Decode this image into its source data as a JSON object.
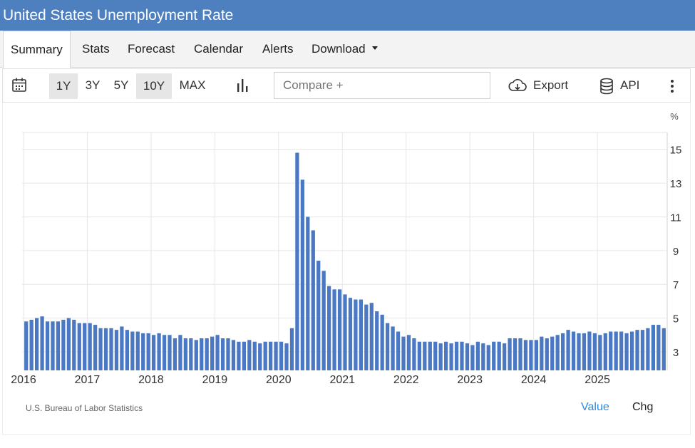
{
  "header": {
    "title": "United States Unemployment Rate"
  },
  "tabs": [
    {
      "label": "Summary",
      "active": true
    },
    {
      "label": "Stats"
    },
    {
      "label": "Forecast"
    },
    {
      "label": "Calendar"
    },
    {
      "label": "Alerts"
    },
    {
      "label": "Download"
    }
  ],
  "toolbar": {
    "ranges": [
      "1Y",
      "3Y",
      "5Y",
      "10Y",
      "MAX"
    ],
    "selected_ranges": [
      "1Y",
      "10Y"
    ],
    "compare_placeholder": "Compare +",
    "export_label": "Export",
    "api_label": "API",
    "icons": [
      "calendar-icon",
      "bar-chart-icon",
      "cloud-download-icon",
      "database-icon",
      "more-vertical-icon"
    ]
  },
  "footer": {
    "source": "U.S. Bureau of Labor Statistics",
    "value_label": "Value",
    "chg_label": "Chg"
  },
  "colors": {
    "title_bar": "#4e7fbf",
    "bar": "#4a78c2",
    "link": "#2a8ae6"
  },
  "chart_data": {
    "type": "bar",
    "unit": "%",
    "y_ticks": [
      3,
      5,
      7,
      9,
      11,
      13,
      15
    ],
    "ylim": [
      1.9,
      16
    ],
    "x_ticks": [
      "2016",
      "2017",
      "2018",
      "2019",
      "2020",
      "2021",
      "2022",
      "2023",
      "2024",
      "2025"
    ],
    "start": "2016-01",
    "grid": true,
    "series": [
      {
        "values": [
          4.8,
          4.9,
          5.0,
          5.1,
          4.8,
          4.8,
          4.8,
          4.9,
          5.0,
          4.9,
          4.7,
          4.7,
          4.7,
          4.6,
          4.4,
          4.4,
          4.4,
          4.3,
          4.5,
          4.3,
          4.2,
          4.2,
          4.1,
          4.1,
          4.0,
          4.1,
          4.0,
          4.0,
          3.8,
          4.0,
          3.8,
          3.8,
          3.7,
          3.8,
          3.8,
          3.9,
          4.0,
          3.8,
          3.8,
          3.7,
          3.6,
          3.6,
          3.7,
          3.6,
          3.5,
          3.6,
          3.6,
          3.6,
          3.6,
          3.5,
          4.4,
          14.8,
          13.2,
          11.0,
          10.2,
          8.4,
          7.8,
          6.9,
          6.7,
          6.7,
          6.4,
          6.2,
          6.1,
          6.1,
          5.8,
          5.9,
          5.4,
          5.2,
          4.7,
          4.5,
          4.2,
          3.9,
          4.0,
          3.8,
          3.6,
          3.6,
          3.6,
          3.6,
          3.5,
          3.6,
          3.5,
          3.6,
          3.6,
          3.5,
          3.4,
          3.6,
          3.5,
          3.4,
          3.6,
          3.6,
          3.5,
          3.8,
          3.8,
          3.8,
          3.7,
          3.7,
          3.7,
          3.9,
          3.8,
          3.9,
          4.0,
          4.1,
          4.3,
          4.2,
          4.1,
          4.1,
          4.2,
          4.1,
          4.0,
          4.1,
          4.2,
          4.2,
          4.2,
          4.1,
          4.2,
          4.3,
          4.3,
          4.4,
          4.6,
          4.6,
          4.4
        ]
      }
    ]
  }
}
